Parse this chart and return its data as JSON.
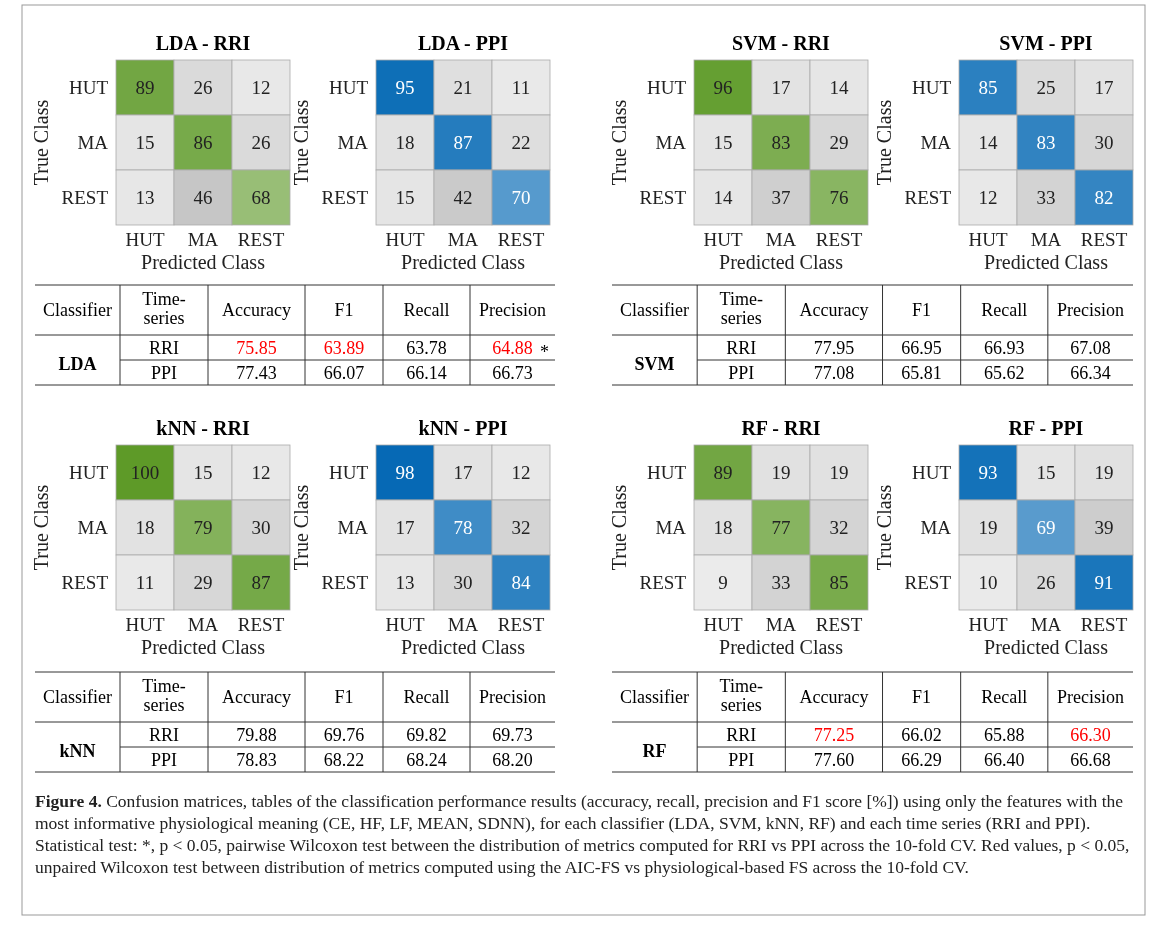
{
  "chart_data": [
    {
      "type": "heatmap",
      "data_labels": true,
      "title": "LDA - RRI",
      "xlabel": "Predicted Class",
      "ylabel": "True Class",
      "categories": [
        "HUT",
        "MA",
        "REST"
      ],
      "y_categories": [
        "HUT",
        "MA",
        "REST"
      ],
      "color": "#5e9a28",
      "cells": [
        [
          89,
          26,
          12
        ],
        [
          15,
          86,
          26
        ],
        [
          13,
          46,
          68
        ]
      ]
    },
    {
      "type": "heatmap",
      "data_labels": true,
      "title": "LDA - PPI",
      "xlabel": "Predicted Class",
      "ylabel": "True Class",
      "categories": [
        "HUT",
        "MA",
        "REST"
      ],
      "y_categories": [
        "HUT",
        "MA",
        "REST"
      ],
      "color": "#0066b3",
      "cells": [
        [
          95,
          21,
          11
        ],
        [
          18,
          87,
          22
        ],
        [
          15,
          42,
          70
        ]
      ]
    },
    {
      "type": "heatmap",
      "data_labels": true,
      "title": "SVM - RRI",
      "xlabel": "Predicted Class",
      "ylabel": "True Class",
      "categories": [
        "HUT",
        "MA",
        "REST"
      ],
      "y_categories": [
        "HUT",
        "MA",
        "REST"
      ],
      "color": "#5e9a28",
      "cells": [
        [
          96,
          17,
          14
        ],
        [
          15,
          83,
          29
        ],
        [
          14,
          37,
          76
        ]
      ]
    },
    {
      "type": "heatmap",
      "data_labels": true,
      "title": "SVM - PPI",
      "xlabel": "Predicted Class",
      "ylabel": "True Class",
      "categories": [
        "HUT",
        "MA",
        "REST"
      ],
      "y_categories": [
        "HUT",
        "MA",
        "REST"
      ],
      "color": "#0066b3",
      "cells": [
        [
          85,
          25,
          17
        ],
        [
          14,
          83,
          30
        ],
        [
          12,
          33,
          82
        ]
      ]
    },
    {
      "type": "other",
      "title": "LDA",
      "categories": [
        "Classifier",
        "Time-series",
        "Accuracy",
        "F1",
        "Recall",
        "Precision"
      ],
      "y_categories": [
        "RRI",
        "PPI"
      ],
      "cell_labels": [
        [
          "75.85",
          "63.89",
          "63.78",
          "64.88"
        ],
        [
          "77.43",
          "66.07",
          "66.14",
          "66.73"
        ]
      ],
      "colors": [
        [
          "#ff0000",
          "#ff0000",
          "#000000",
          "#ff0000"
        ],
        [
          "#000000",
          "#000000",
          "#000000",
          "#000000"
        ]
      ],
      "annotations": [
        "*"
      ]
    },
    {
      "type": "other",
      "title": "SVM",
      "categories": [
        "Classifier",
        "Time-series",
        "Accuracy",
        "F1",
        "Recall",
        "Precision"
      ],
      "y_categories": [
        "RRI",
        "PPI"
      ],
      "cell_labels": [
        [
          "77.95",
          "66.95",
          "66.93",
          "67.08"
        ],
        [
          "77.08",
          "65.81",
          "65.62",
          "66.34"
        ]
      ],
      "colors": [
        [
          "#000000",
          "#000000",
          "#000000",
          "#000000"
        ],
        [
          "#000000",
          "#000000",
          "#000000",
          "#000000"
        ]
      ]
    },
    {
      "type": "heatmap",
      "data_labels": true,
      "title": "kNN - RRI",
      "xlabel": "Predicted Class",
      "ylabel": "True Class",
      "categories": [
        "HUT",
        "MA",
        "REST"
      ],
      "y_categories": [
        "HUT",
        "MA",
        "REST"
      ],
      "color": "#5e9a28",
      "cells": [
        [
          100,
          15,
          12
        ],
        [
          18,
          79,
          30
        ],
        [
          11,
          29,
          87
        ]
      ]
    },
    {
      "type": "heatmap",
      "data_labels": true,
      "title": "kNN - PPI",
      "xlabel": "Predicted Class",
      "ylabel": "True Class",
      "categories": [
        "HUT",
        "MA",
        "REST"
      ],
      "y_categories": [
        "HUT",
        "MA",
        "REST"
      ],
      "color": "#0066b3",
      "cells": [
        [
          98,
          17,
          12
        ],
        [
          17,
          78,
          32
        ],
        [
          13,
          30,
          84
        ]
      ]
    },
    {
      "type": "heatmap",
      "data_labels": true,
      "title": "RF - RRI",
      "xlabel": "Predicted Class",
      "ylabel": "True Class",
      "categories": [
        "HUT",
        "MA",
        "REST"
      ],
      "y_categories": [
        "HUT",
        "MA",
        "REST"
      ],
      "color": "#5e9a28",
      "cells": [
        [
          89,
          19,
          19
        ],
        [
          18,
          77,
          32
        ],
        [
          9,
          33,
          85
        ]
      ]
    },
    {
      "type": "heatmap",
      "data_labels": true,
      "title": "RF - PPI",
      "xlabel": "Predicted Class",
      "ylabel": "True Class",
      "categories": [
        "HUT",
        "MA",
        "REST"
      ],
      "y_categories": [
        "HUT",
        "MA",
        "REST"
      ],
      "color": "#0066b3",
      "cells": [
        [
          93,
          15,
          19
        ],
        [
          19,
          69,
          39
        ],
        [
          10,
          26,
          91
        ]
      ]
    },
    {
      "type": "other",
      "title": "kNN",
      "categories": [
        "Classifier",
        "Time-series",
        "Accuracy",
        "F1",
        "Recall",
        "Precision"
      ],
      "y_categories": [
        "RRI",
        "PPI"
      ],
      "cell_labels": [
        [
          "79.88",
          "69.76",
          "69.82",
          "69.73"
        ],
        [
          "78.83",
          "68.22",
          "68.24",
          "68.20"
        ]
      ],
      "colors": [
        [
          "#000000",
          "#000000",
          "#000000",
          "#000000"
        ],
        [
          "#000000",
          "#000000",
          "#000000",
          "#000000"
        ]
      ]
    },
    {
      "type": "other",
      "title": "RF",
      "categories": [
        "Classifier",
        "Time-series",
        "Accuracy",
        "F1",
        "Recall",
        "Precision"
      ],
      "y_categories": [
        "RRI",
        "PPI"
      ],
      "cell_labels": [
        [
          "77.25",
          "66.02",
          "65.88",
          "66.30"
        ],
        [
          "77.60",
          "66.29",
          "66.40",
          "66.68"
        ]
      ],
      "colors": [
        [
          "#ff0000",
          "#000000",
          "#000000",
          "#ff0000"
        ],
        [
          "#000000",
          "#000000",
          "#000000",
          "#000000"
        ]
      ]
    },
    {
      "type": "other",
      "title": "Figure 4.",
      "annotations": [
        "Confusion matrices, tables of the classification performance results (accuracy, recall, precision and F1 score [%]) using only the features with the most informative physiological meaning (CE, HF, LF, MEAN, SDNN), for each classifier (LDA, SVM, kNN, RF) and each time series (RRI and PPI). Statistical test: *, p < 0.05, pairwise Wilcoxon test between the distribution of metrics computed for RRI vs PPI across the 10-fold CV. Red values, p < 0.05, unpaired Wilcoxon test between distribution of metrics computed using the AIC-FS vs physiological-based FS across the 10-fold CV."
      ]
    }
  ]
}
